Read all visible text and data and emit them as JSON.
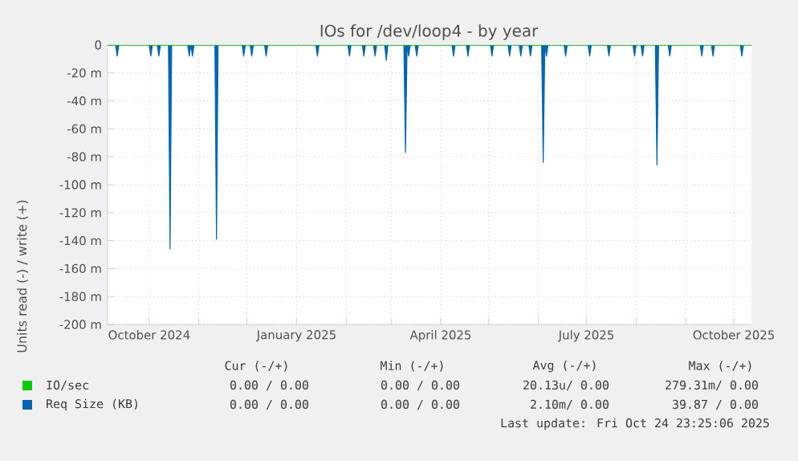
{
  "chart_data": {
    "type": "area",
    "title": "IOs for /dev/loop4 - by year",
    "ylabel": "Units read (-) / write (+)",
    "xlim": [
      "2024-09-05",
      "2025-10-12"
    ],
    "xticks": [
      {
        "value": "2024-10-01",
        "label": "October 2024"
      },
      {
        "value": "2024-11-01",
        "label": null
      },
      {
        "value": "2024-12-01",
        "label": null
      },
      {
        "value": "2025-01-01",
        "label": "January 2025"
      },
      {
        "value": "2025-02-01",
        "label": null
      },
      {
        "value": "2025-03-01",
        "label": null
      },
      {
        "value": "2025-04-01",
        "label": "April 2025"
      },
      {
        "value": "2025-05-01",
        "label": null
      },
      {
        "value": "2025-06-01",
        "label": null
      },
      {
        "value": "2025-07-01",
        "label": "July 2025"
      },
      {
        "value": "2025-08-01",
        "label": null
      },
      {
        "value": "2025-09-01",
        "label": null
      },
      {
        "value": "2025-10-01",
        "label": "October 2025"
      }
    ],
    "ylim": [
      -200,
      0
    ],
    "yticks": [
      {
        "value": -200,
        "label": "-200 m"
      },
      {
        "value": -180,
        "label": "-180 m"
      },
      {
        "value": -160,
        "label": "-160 m"
      },
      {
        "value": -140,
        "label": "-140 m"
      },
      {
        "value": -120,
        "label": "-120 m"
      },
      {
        "value": -100,
        "label": "-100 m"
      },
      {
        "value": -80,
        "label": "-80 m"
      },
      {
        "value": -60,
        "label": "-60 m"
      },
      {
        "value": -40,
        "label": "-40 m"
      },
      {
        "value": -20,
        "label": "-20 m"
      },
      0
    ],
    "grid": true,
    "legend": "bottom",
    "series": [
      {
        "name": "IO/sec",
        "type": "line",
        "color": "#00cc00",
        "x": [
          "2024-09-05",
          "2025-10-12"
        ],
        "values": [
          0,
          0
        ]
      },
      {
        "name": "Req Size (KB)",
        "color": "#0066b3",
        "x": [
          "2024-09-05",
          "2024-09-10",
          "2024-09-11",
          "2024-09-12",
          "2024-10-01",
          "2024-10-02",
          "2024-10-03",
          "2024-10-06",
          "2024-10-07",
          "2024-10-08",
          "2024-10-13",
          "2024-10-14",
          "2024-10-15",
          "2024-10-25",
          "2024-10-26",
          "2024-10-27",
          "2024-10-28",
          "2024-10-29",
          "2024-11-11",
          "2024-11-12",
          "2024-11-13",
          "2024-11-28",
          "2024-11-29",
          "2024-11-30",
          "2024-12-03",
          "2024-12-04",
          "2024-12-05",
          "2024-12-12",
          "2024-12-13",
          "2024-12-14",
          "2025-01-13",
          "2025-01-14",
          "2025-01-15",
          "2025-02-02",
          "2025-02-03",
          "2025-02-04",
          "2025-02-11",
          "2025-02-12",
          "2025-02-13",
          "2025-02-18",
          "2025-02-19",
          "2025-02-20",
          "2025-02-25",
          "2025-02-26",
          "2025-02-27",
          "2025-03-09",
          "2025-03-10",
          "2025-03-11",
          "2025-03-12",
          "2025-03-13",
          "2025-03-16",
          "2025-03-17",
          "2025-03-18",
          "2025-04-08",
          "2025-04-09",
          "2025-04-10",
          "2025-04-17",
          "2025-04-18",
          "2025-04-19",
          "2025-05-02",
          "2025-05-03",
          "2025-05-04",
          "2025-05-13",
          "2025-05-14",
          "2025-05-15",
          "2025-05-20",
          "2025-05-21",
          "2025-05-22",
          "2025-05-26",
          "2025-05-27",
          "2025-05-28",
          "2025-06-03",
          "2025-06-04",
          "2025-06-05",
          "2025-06-06",
          "2025-06-07",
          "2025-06-17",
          "2025-06-18",
          "2025-06-19",
          "2025-07-02",
          "2025-07-03",
          "2025-07-04",
          "2025-07-14",
          "2025-07-15",
          "2025-07-16",
          "2025-07-30",
          "2025-07-31",
          "2025-08-01",
          "2025-08-04",
          "2025-08-05",
          "2025-08-06",
          "2025-08-13",
          "2025-08-14",
          "2025-08-15",
          "2025-08-21",
          "2025-08-22",
          "2025-08-23",
          "2025-09-10",
          "2025-09-11",
          "2025-09-12",
          "2025-09-17",
          "2025-09-18",
          "2025-09-19",
          "2025-10-05",
          "2025-10-06",
          "2025-10-07",
          "2025-10-12"
        ],
        "values": [
          0,
          0,
          -8,
          0,
          0,
          -8,
          0,
          0,
          -8,
          0,
          0,
          -146,
          0,
          0,
          -8,
          0,
          -8,
          0,
          0,
          -139,
          0,
          0,
          -8,
          0,
          0,
          -8,
          0,
          0,
          -8,
          0,
          0,
          -8,
          0,
          0,
          -8,
          0,
          0,
          -8,
          0,
          0,
          -8,
          0,
          0,
          -11,
          0,
          0,
          -77,
          0,
          -8,
          0,
          0,
          -8,
          0,
          0,
          -8,
          0,
          0,
          -8,
          0,
          0,
          -8,
          0,
          0,
          -8,
          0,
          0,
          -8,
          0,
          0,
          -8,
          0,
          0,
          -84,
          0,
          -8,
          0,
          0,
          -8,
          0,
          0,
          -8,
          0,
          0,
          -8,
          0,
          0,
          -8,
          0,
          0,
          -8,
          0,
          0,
          -86,
          0,
          0,
          -8,
          0,
          0,
          -8,
          0,
          0,
          -8,
          0,
          0,
          -8,
          0,
          0
        ]
      }
    ],
    "annotations": [
      "Cur (-/+)",
      "Min (-/+)",
      "Avg (-/+)",
      "Max (-/+)",
      "0.00 / 0.00",
      "0.00 / 0.00",
      "20.13u/ 0.00",
      "279.31m/ 0.00",
      "0.00 / 0.00",
      "0.00 / 0.00",
      "2.10m/ 0.00",
      "39.87 / 0.00",
      "Last update: Fri Oct 24 23:25:06 2025"
    ]
  }
}
